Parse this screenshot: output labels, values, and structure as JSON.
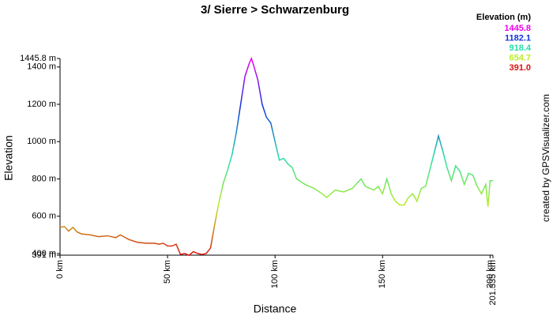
{
  "chart_data": {
    "type": "line",
    "title": "3/ Sierre > Schwarzenburg",
    "x_label": "Distance",
    "y_label": "Elevation",
    "credit": "created by GPSVisualizer.com",
    "legend": {
      "title": "Elevation (m)",
      "items": [
        {
          "value": 1445.8,
          "color": "#ee00ee"
        },
        {
          "value": 1182.1,
          "color": "#1133dd"
        },
        {
          "value": 918.4,
          "color": "#22ddaa"
        },
        {
          "value": 654.7,
          "color": "#bbee22"
        },
        {
          "value": 391,
          "label": "391.0",
          "color": "#dd1111"
        }
      ]
    },
    "xlim": [
      0,
      201.335
    ],
    "ylim": [
      391,
      1445.8
    ],
    "xticks": [
      {
        "value": 0,
        "label": "0 km"
      },
      {
        "value": 50,
        "label": "50 km"
      },
      {
        "value": 100,
        "label": "100 km"
      },
      {
        "value": 150,
        "label": "150 km"
      },
      {
        "value": 200,
        "label": "200 km"
      },
      {
        "value": 201.335,
        "label": "201.335 km"
      }
    ],
    "yticks": [
      {
        "value": 391,
        "label": "391 m"
      },
      {
        "value": 400,
        "label": "400 m"
      },
      {
        "value": 600,
        "label": "600 m"
      },
      {
        "value": 800,
        "label": "800 m"
      },
      {
        "value": 1000,
        "label": "1000 m"
      },
      {
        "value": 1200,
        "label": "1200 m"
      },
      {
        "value": 1400,
        "label": "1400 m"
      },
      {
        "value": 1445.8,
        "label": "1445.8 m"
      }
    ],
    "series": [
      {
        "name": "Elevation",
        "x": [
          0,
          2,
          4,
          6,
          8,
          10,
          14,
          18,
          22,
          26,
          28,
          32,
          36,
          40,
          44,
          46,
          48,
          50,
          52,
          54,
          56,
          58,
          60,
          62,
          64,
          66,
          68,
          70,
          72,
          74,
          76,
          78,
          80,
          82,
          84,
          86,
          88,
          89,
          90,
          92,
          94,
          96,
          98,
          100,
          102,
          104,
          106,
          108,
          110,
          114,
          118,
          122,
          124,
          126,
          128,
          132,
          136,
          140,
          142,
          146,
          148,
          150,
          152,
          154,
          156,
          158,
          160,
          162,
          164,
          166,
          168,
          170,
          172,
          174,
          176,
          178,
          180,
          182,
          184,
          186,
          188,
          190,
          192,
          194,
          196,
          198,
          199,
          200,
          201.335
        ],
        "values": [
          540,
          545,
          520,
          540,
          515,
          505,
          500,
          490,
          495,
          485,
          500,
          475,
          460,
          455,
          455,
          450,
          455,
          440,
          440,
          450,
          395,
          400,
          390,
          410,
          400,
          395,
          400,
          430,
          560,
          680,
          780,
          850,
          930,
          1050,
          1200,
          1350,
          1420,
          1445.8,
          1410,
          1330,
          1200,
          1130,
          1100,
          1000,
          900,
          910,
          880,
          860,
          800,
          770,
          750,
          720,
          700,
          720,
          740,
          730,
          750,
          800,
          760,
          740,
          760,
          720,
          800,
          720,
          680,
          660,
          660,
          700,
          720,
          680,
          750,
          760,
          850,
          940,
          1030,
          950,
          860,
          790,
          870,
          840,
          770,
          830,
          820,
          760,
          720,
          770,
          650,
          790,
          790
        ]
      }
    ]
  }
}
